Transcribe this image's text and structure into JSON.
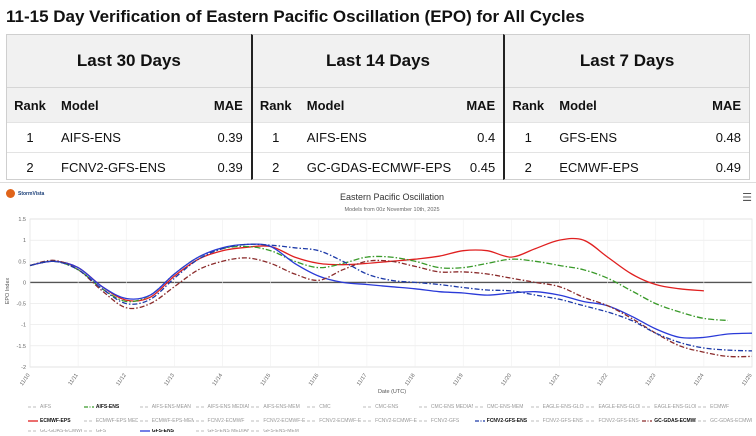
{
  "page_title": "11-15 Day Verification of Eastern Pacific Oscillation (EPO) for All Cycles",
  "tables": [
    {
      "title": "Last 30 Days",
      "headers": [
        "Rank",
        "Model",
        "MAE"
      ],
      "rows": [
        [
          "1",
          "AIFS-ENS",
          "0.39"
        ],
        [
          "2",
          "FCNV2-GFS-ENS",
          "0.39"
        ]
      ]
    },
    {
      "title": "Last 14 Days",
      "headers": [
        "Rank",
        "Model",
        "MAE"
      ],
      "rows": [
        [
          "1",
          "AIFS-ENS",
          "0.4"
        ],
        [
          "2",
          "GC-GDAS-ECMWF-EPS",
          "0.45"
        ]
      ]
    },
    {
      "title": "Last 7 Days",
      "headers": [
        "Rank",
        "Model",
        "MAE"
      ],
      "rows": [
        [
          "1",
          "GFS-ENS",
          "0.48"
        ],
        [
          "2",
          "ECMWF-EPS",
          "0.49"
        ]
      ]
    }
  ],
  "brand": "StormVista",
  "icons": {
    "menu": "hamburger-menu-icon",
    "logo": "stormvista-logo-icon"
  },
  "chart_data": {
    "type": "line",
    "title": "Eastern Pacific Oscillation",
    "subtitle": "Models from 00z November 10th, 2025",
    "xlabel": "Date (UTC)",
    "ylabel": "EPO Index",
    "ylim": [
      -2,
      1.5
    ],
    "yticks": [
      -2,
      -1.5,
      -1,
      -0.5,
      0,
      0.5,
      1,
      1.5
    ],
    "xlim": [
      0,
      15
    ],
    "xticks": [
      {
        "x": 0,
        "label": "11/10"
      },
      {
        "x": 1,
        "label": "11/11"
      },
      {
        "x": 2,
        "label": "11/12"
      },
      {
        "x": 3,
        "label": "11/13"
      },
      {
        "x": 4,
        "label": "11/14"
      },
      {
        "x": 5,
        "label": "11/15"
      },
      {
        "x": 6,
        "label": "11/16"
      },
      {
        "x": 7,
        "label": "11/17"
      },
      {
        "x": 8,
        "label": "11/18"
      },
      {
        "x": 9,
        "label": "11/19"
      },
      {
        "x": 10,
        "label": "11/20"
      },
      {
        "x": 11,
        "label": "11/21"
      },
      {
        "x": 12,
        "label": "11/22"
      },
      {
        "x": 13,
        "label": "11/23"
      },
      {
        "x": 14,
        "label": "11/24"
      },
      {
        "x": 15,
        "label": "11/25"
      }
    ],
    "grid": true,
    "legend_position": "bottom",
    "series": [
      {
        "name": "ECMWF-EPS",
        "color": "#e02020",
        "dash": "solid",
        "width": 1.3,
        "x": [
          0,
          0.5,
          1,
          1.5,
          2,
          2.5,
          3,
          3.5,
          4,
          4.5,
          5,
          5.5,
          6,
          6.5,
          7,
          7.5,
          8,
          8.5,
          9,
          9.5,
          10,
          10.5,
          11,
          11.5,
          12,
          12.5,
          13,
          13.5,
          14
        ],
        "y": [
          0.4,
          0.5,
          0.35,
          -0.1,
          -0.42,
          -0.35,
          0.15,
          0.55,
          0.75,
          0.83,
          0.85,
          0.6,
          0.45,
          0.42,
          0.45,
          0.5,
          0.55,
          0.62,
          0.75,
          0.75,
          0.6,
          0.8,
          1.0,
          1.0,
          0.6,
          0.2,
          -0.05,
          -0.15,
          -0.2
        ]
      },
      {
        "name": "AIFS-ENS",
        "color": "#3a9a2a",
        "dash": "6,2,1.5,2",
        "width": 1.3,
        "x": [
          0,
          0.5,
          1,
          1.5,
          2,
          2.5,
          3,
          3.5,
          4,
          4.5,
          5,
          5.5,
          6,
          6.5,
          7,
          7.5,
          8,
          8.5,
          9,
          9.5,
          10,
          10.5,
          11,
          11.5,
          12,
          12.5,
          13,
          13.5,
          14,
          14.5
        ],
        "y": [
          0.4,
          0.5,
          0.3,
          -0.15,
          -0.45,
          -0.3,
          0.2,
          0.6,
          0.8,
          0.85,
          0.75,
          0.5,
          0.35,
          0.45,
          0.6,
          0.6,
          0.5,
          0.35,
          0.35,
          0.45,
          0.55,
          0.5,
          0.4,
          0.3,
          0.1,
          -0.2,
          -0.5,
          -0.7,
          -0.85,
          -0.9
        ]
      },
      {
        "name": "GFS-ENS",
        "color": "#2a3ad8",
        "dash": "solid",
        "width": 1.3,
        "x": [
          0,
          0.5,
          1,
          1.5,
          2,
          2.5,
          3,
          3.5,
          4,
          4.5,
          5,
          5.5,
          6,
          6.5,
          7,
          7.5,
          8,
          8.5,
          9,
          9.5,
          10,
          10.5,
          11,
          11.5,
          12,
          12.5,
          13,
          13.5,
          14,
          14.5,
          15
        ],
        "y": [
          0.4,
          0.5,
          0.35,
          -0.1,
          -0.38,
          -0.3,
          0.2,
          0.6,
          0.82,
          0.9,
          0.85,
          0.45,
          0.15,
          0.0,
          -0.05,
          -0.1,
          -0.15,
          -0.22,
          -0.25,
          -0.3,
          -0.25,
          -0.22,
          -0.3,
          -0.45,
          -0.55,
          -0.8,
          -1.1,
          -1.3,
          -1.3,
          -1.22,
          -1.2
        ]
      },
      {
        "name": "GC-GDAS-ECMWF-EPS",
        "color": "#8a2a2a",
        "dash": "5,2,1.5,2",
        "width": 1.3,
        "x": [
          0,
          0.5,
          1,
          1.5,
          2,
          2.5,
          3,
          3.5,
          4,
          4.5,
          5,
          5.5,
          6,
          6.5,
          7,
          7.5,
          8,
          8.5,
          9,
          9.5,
          10,
          10.5,
          11,
          11.5,
          12,
          12.5,
          13,
          13.5,
          14,
          14.5,
          15
        ],
        "y": [
          0.4,
          0.52,
          0.3,
          -0.2,
          -0.6,
          -0.5,
          -0.1,
          0.3,
          0.5,
          0.58,
          0.45,
          0.2,
          0.05,
          0.3,
          0.5,
          0.5,
          0.38,
          0.25,
          0.25,
          0.2,
          0.1,
          0.0,
          -0.1,
          -0.35,
          -0.55,
          -0.85,
          -1.2,
          -1.5,
          -1.65,
          -1.75,
          -1.75
        ]
      },
      {
        "name": "FCNV2-GFS-ENS",
        "color": "#1d3aa8",
        "dash": "5,2,1.5,2",
        "width": 1.3,
        "x": [
          0,
          0.5,
          1,
          1.5,
          2,
          2.5,
          3,
          3.5,
          4,
          4.5,
          5,
          5.5,
          6,
          6.5,
          7,
          7.5,
          8,
          8.5,
          9,
          9.5,
          10,
          10.5,
          11,
          11.5,
          12,
          12.5,
          13,
          13.5,
          14,
          14.5,
          15
        ],
        "y": [
          0.4,
          0.5,
          0.3,
          -0.15,
          -0.5,
          -0.4,
          0.1,
          0.55,
          0.8,
          0.9,
          0.88,
          0.82,
          0.75,
          0.5,
          0.2,
          0.05,
          0.0,
          -0.05,
          -0.12,
          -0.18,
          -0.2,
          -0.3,
          -0.4,
          -0.55,
          -0.7,
          -0.9,
          -1.2,
          -1.42,
          -1.55,
          -1.6,
          -1.62
        ]
      }
    ],
    "legend": [
      {
        "name": "AIFS",
        "bold": false,
        "color": "#bdbdbd",
        "dash": "3,2"
      },
      {
        "name": "AIFS-ENS",
        "bold": true,
        "color": "#3a9a2a",
        "dash": "4,1.5,1,1.5"
      },
      {
        "name": "AIFS-ENS-MEAN",
        "bold": false,
        "color": "#bdbdbd",
        "dash": "3,2"
      },
      {
        "name": "AIFS-ENS MEDIAN",
        "bold": false,
        "color": "#bdbdbd",
        "dash": "3,2"
      },
      {
        "name": "AIFS-ENS-MEM",
        "bold": false,
        "color": "#bdbdbd",
        "dash": "3,2"
      },
      {
        "name": "CMC",
        "bold": false,
        "color": "#bdbdbd",
        "dash": "3,2"
      },
      {
        "name": "CMC-ENS",
        "bold": false,
        "color": "#bdbdbd",
        "dash": "3,2"
      },
      {
        "name": "CMC-ENS MEDIAN",
        "bold": false,
        "color": "#bdbdbd",
        "dash": "3,2"
      },
      {
        "name": "CMC-ENS-MEM",
        "bold": false,
        "color": "#bdbdbd",
        "dash": "3,2"
      },
      {
        "name": "EAGLE-ENS-GLOBAL",
        "bold": false,
        "color": "#bdbdbd",
        "dash": "3,2"
      },
      {
        "name": "EAGLE-ENS-GLOBAL MEDIAN",
        "bold": false,
        "color": "#bdbdbd",
        "dash": "3,2"
      },
      {
        "name": "EAGLE-ENS-GLOBAL-MEM",
        "bold": false,
        "color": "#bdbdbd",
        "dash": "3,2"
      },
      {
        "name": "ECMWF",
        "bold": false,
        "color": "#bdbdbd",
        "dash": "3,2"
      },
      {
        "name": "ECMWF-EPS",
        "bold": true,
        "color": "#e02020",
        "dash": "none"
      },
      {
        "name": "ECMWF-EPS MEDIAN",
        "bold": false,
        "color": "#bdbdbd",
        "dash": "3,2"
      },
      {
        "name": "ECMWF-EPS-MEM",
        "bold": false,
        "color": "#bdbdbd",
        "dash": "3,2"
      },
      {
        "name": "FCNV2-ECMWF",
        "bold": false,
        "color": "#bdbdbd",
        "dash": "3,2"
      },
      {
        "name": "FCNV2-ECMWF-EPS",
        "bold": false,
        "color": "#bdbdbd",
        "dash": "3,2"
      },
      {
        "name": "FCNV2-ECMWF-EPS MEDIAN",
        "bold": false,
        "color": "#bdbdbd",
        "dash": "3,2"
      },
      {
        "name": "FCNV2-ECMWF-EPS-MEM",
        "bold": false,
        "color": "#bdbdbd",
        "dash": "3,2"
      },
      {
        "name": "FCNV2-GFS",
        "bold": false,
        "color": "#bdbdbd",
        "dash": "3,2"
      },
      {
        "name": "FCNV2-GFS-ENS",
        "bold": true,
        "color": "#1d3aa8",
        "dash": "4,1.5,1,1.5"
      },
      {
        "name": "FCNV2-GFS-ENS MEDIAN",
        "bold": false,
        "color": "#bdbdbd",
        "dash": "3,2"
      },
      {
        "name": "FCNV2-GFS-ENS-MEM",
        "bold": false,
        "color": "#bdbdbd",
        "dash": "3,2"
      },
      {
        "name": "GC-GDAS-ECMWF-EPS",
        "bold": true,
        "color": "#8a2a2a",
        "dash": "4,1.5,1,1.5"
      },
      {
        "name": "GC-GDAS-ECMWF-EPS MEDIAN",
        "bold": false,
        "color": "#bdbdbd",
        "dash": "3,2"
      },
      {
        "name": "GC-GDAS-ECMWF-EPS-MEM",
        "bold": false,
        "color": "#bdbdbd",
        "dash": "3,2"
      },
      {
        "name": "GFS",
        "bold": false,
        "color": "#bdbdbd",
        "dash": "3,2"
      },
      {
        "name": "GFS-ENS",
        "bold": true,
        "color": "#2a3ad8",
        "dash": "none"
      },
      {
        "name": "GFS-ENS MEDIAN",
        "bold": false,
        "color": "#bdbdbd",
        "dash": "3,2"
      },
      {
        "name": "GFS-ENS-MEM",
        "bold": false,
        "color": "#bdbdbd",
        "dash": "3,2"
      }
    ]
  }
}
